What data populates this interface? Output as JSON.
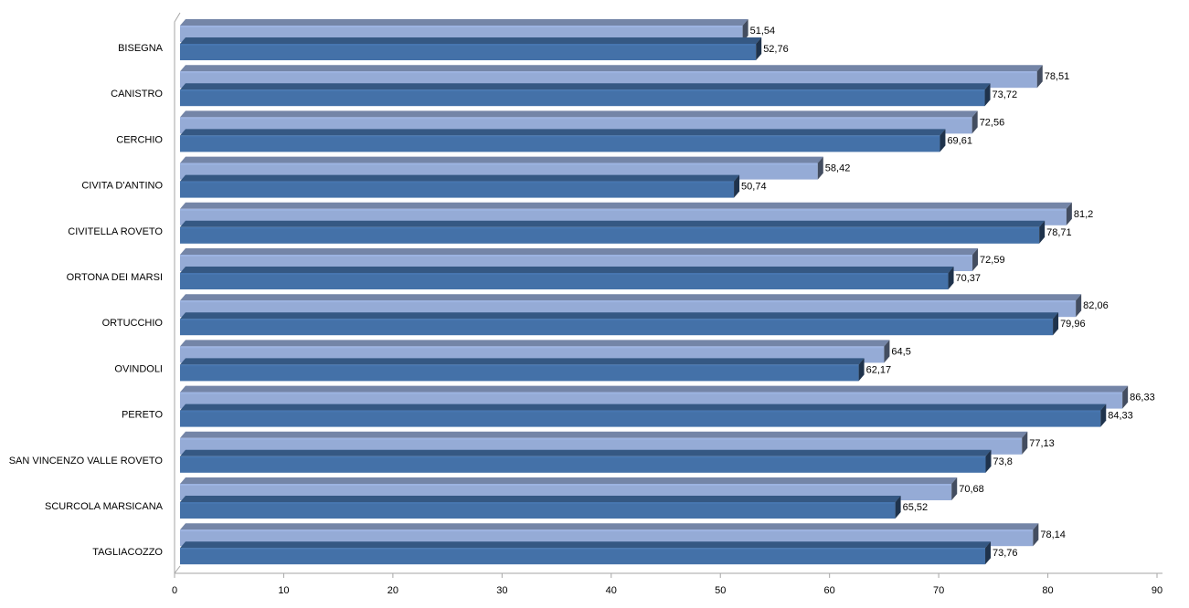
{
  "chart_data": {
    "type": "bar",
    "orientation": "horizontal",
    "categories": [
      "BISEGNA",
      "CANISTRO",
      "CERCHIO",
      "CIVITA  D'ANTINO",
      "CIVITELLA ROVETO",
      "ORTONA DEI MARSI",
      "ORTUCCHIO",
      "OVINDOLI",
      "PERETO",
      "SAN VINCENZO  VALLE ROVETO",
      "SCURCOLA MARSICANA",
      "TAGLIACOZZO"
    ],
    "series": [
      {
        "color": "#95abd6",
        "values": [
          51.54,
          78.51,
          72.56,
          58.42,
          81.2,
          72.59,
          82.06,
          64.5,
          86.33,
          77.13,
          70.68,
          78.14
        ],
        "labels": [
          "51,54",
          "78,51",
          "72,56",
          "58,42",
          "81,2",
          "72,59",
          "82,06",
          "64,5",
          "86,33",
          "77,13",
          "70,68",
          "78,14"
        ]
      },
      {
        "color": "#4471a8",
        "values": [
          52.76,
          73.72,
          69.61,
          50.74,
          78.71,
          70.37,
          79.96,
          62.17,
          84.33,
          73.8,
          65.52,
          73.76
        ],
        "labels": [
          "52,76",
          "73,72",
          "69,61",
          "50,74",
          "78,71",
          "70,37",
          "79,96",
          "62,17",
          "84,33",
          "73,8",
          "65,52",
          "73,76"
        ]
      }
    ],
    "xlim": [
      0,
      90
    ],
    "ticks": [
      "0",
      "10",
      "20",
      "30",
      "40",
      "50",
      "60",
      "70",
      "80",
      "90"
    ],
    "grid": false,
    "legend": "none"
  }
}
